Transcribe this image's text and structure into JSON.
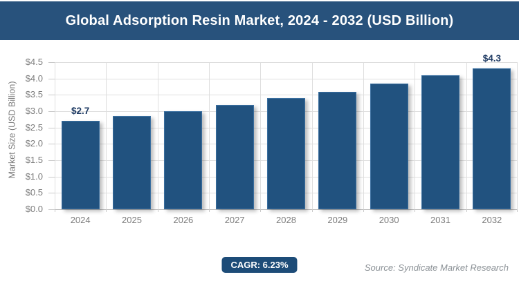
{
  "banner": {
    "title": "Global Adsorption Resin Market, 2024 - 2032 (USD Billion)"
  },
  "chart_data": {
    "type": "bar",
    "title": "Global Adsorption Resin Market, 2024 - 2032 (USD Billion)",
    "categories": [
      "2024",
      "2025",
      "2026",
      "2027",
      "2028",
      "2029",
      "2030",
      "2031",
      "2032"
    ],
    "values": [
      2.7,
      2.85,
      3.0,
      3.2,
      3.4,
      3.6,
      3.85,
      4.1,
      4.3
    ],
    "bar_labels": [
      "$2.7",
      "",
      "",
      "",
      "",
      "",
      "",
      "",
      "$4.3"
    ],
    "xlabel": "",
    "ylabel": "Market Size (USD Billion)",
    "ylim": [
      0,
      4.5
    ],
    "ytick_step": 0.5,
    "ytick_labels": [
      "$0.0",
      "$0.5",
      "$1.0",
      "$1.5",
      "$2.0",
      "$2.5",
      "$3.0",
      "$3.5",
      "$4.0",
      "$4.5"
    ],
    "grid": "both",
    "legend": "none"
  },
  "footer": {
    "cagr_label": "CAGR: 6.23%",
    "source": "Source: Syndicate Market Research"
  },
  "colors": {
    "banner_bg": "#28527C",
    "title_text": "#FFFFFF",
    "bar_fill": "#21527F",
    "bar_highlight": "#3A6FA0",
    "badge_bg": "#1D4C78",
    "axis_text": "#7C7C7C",
    "gridline": "#DEDEDE",
    "axis_line": "#B9B9B9",
    "tick_line": "#C9C9C9",
    "data_label": "#1E3A63",
    "source_text": "#8B9196"
  }
}
